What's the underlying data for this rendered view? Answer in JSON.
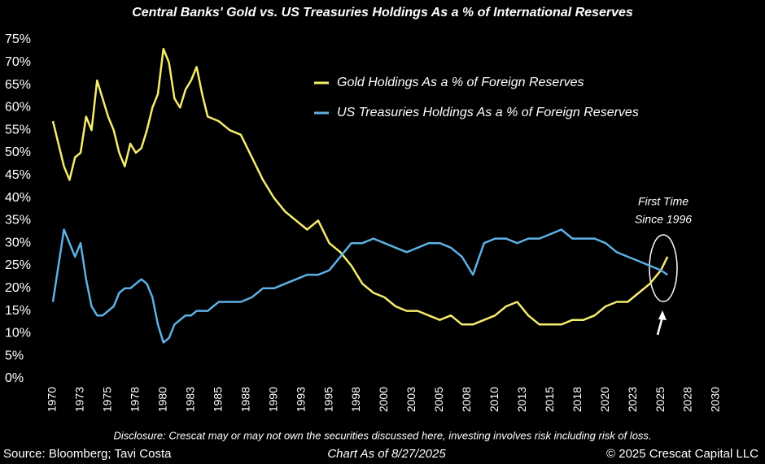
{
  "chart_data": {
    "type": "line",
    "title": "Central Banks' Gold vs. US Treasuries Holdings As a % of International Reserves",
    "x": [
      1970,
      1970.5,
      1971,
      1971.5,
      1972,
      1972.5,
      1973,
      1973.5,
      1974,
      1974.5,
      1975,
      1975.5,
      1976,
      1976.5,
      1977,
      1977.5,
      1978,
      1978.5,
      1979,
      1979.5,
      1980,
      1980.5,
      1981,
      1981.5,
      1982,
      1982.5,
      1983,
      1983.5,
      1984,
      1985,
      1986,
      1987,
      1988,
      1989,
      1990,
      1991,
      1992,
      1993,
      1994,
      1995,
      1996,
      1997,
      1998,
      1999,
      2000,
      2001,
      2002,
      2003,
      2004,
      2005,
      2006,
      2007,
      2008,
      2009,
      2010,
      2011,
      2012,
      2013,
      2014,
      2015,
      2016,
      2017,
      2018,
      2019,
      2020,
      2021,
      2022,
      2023,
      2024,
      2025,
      2025.6
    ],
    "series": [
      {
        "name": "Gold Holdings As a % of Foreign Reserves",
        "color": "#f5ec6e",
        "values": [
          57,
          52,
          47,
          44,
          49,
          50,
          58,
          55,
          66,
          62,
          58,
          55,
          50,
          47,
          52,
          50,
          51,
          55,
          60,
          63,
          73,
          70,
          62,
          60,
          64,
          66,
          69,
          63,
          58,
          57,
          55,
          54,
          49,
          44,
          40,
          37,
          35,
          33,
          35,
          30,
          28,
          25,
          21,
          19,
          18,
          16,
          15,
          15,
          14,
          13,
          14,
          12,
          12,
          13,
          14,
          16,
          17,
          14,
          12,
          12,
          12,
          13,
          13,
          14,
          16,
          17,
          17,
          19,
          21,
          24,
          27
        ]
      },
      {
        "name": "US Treasuries Holdings As a % of Foreign Reserves",
        "color": "#5eb0e5",
        "values": [
          17,
          25,
          33,
          30,
          27,
          30,
          22,
          16,
          14,
          14,
          15,
          16,
          19,
          20,
          20,
          21,
          22,
          21,
          18,
          12,
          8,
          9,
          12,
          13,
          14,
          14,
          15,
          15,
          15,
          17,
          17,
          17,
          18,
          20,
          20,
          21,
          22,
          23,
          23,
          24,
          27,
          30,
          30,
          31,
          30,
          29,
          28,
          29,
          30,
          30,
          29,
          27,
          23,
          30,
          31,
          31,
          30,
          31,
          31,
          32,
          33,
          31,
          31,
          31,
          30,
          28,
          27,
          26,
          25,
          24,
          23
        ]
      }
    ],
    "xlim": [
      1970,
      2030
    ],
    "xticks": [
      1970,
      {
        "value": 1972.5,
        "label": "1973"
      },
      1975,
      {
        "value": 1977.5,
        "label": "1978"
      },
      1980,
      {
        "value": 1982.5,
        "label": "1983"
      },
      1985,
      {
        "value": 1987.5,
        "label": "1988"
      },
      1990,
      {
        "value": 1992.5,
        "label": "1993"
      },
      1995,
      {
        "value": 1997.5,
        "label": "1998"
      },
      2000,
      {
        "value": 2002.5,
        "label": "2003"
      },
      2005,
      {
        "value": 2007.5,
        "label": "2008"
      },
      2010,
      {
        "value": 2012.5,
        "label": "2013"
      },
      2015,
      {
        "value": 2017.5,
        "label": "2018"
      },
      2020,
      {
        "value": 2022.5,
        "label": "2023"
      },
      2025,
      {
        "value": 2027.5,
        "label": "2028"
      },
      2030
    ],
    "ylim": [
      0,
      75
    ],
    "yticks": [
      {
        "value": 0,
        "label": "0%"
      },
      {
        "value": 5,
        "label": "5%"
      },
      {
        "value": 10,
        "label": "10%"
      },
      {
        "value": 15,
        "label": "15%"
      },
      {
        "value": 20,
        "label": "20%"
      },
      {
        "value": 25,
        "label": "25%"
      },
      {
        "value": 30,
        "label": "30%"
      },
      {
        "value": 35,
        "label": "35%"
      },
      {
        "value": 40,
        "label": "40%"
      },
      {
        "value": 45,
        "label": "45%"
      },
      {
        "value": 50,
        "label": "50%"
      },
      {
        "value": 55,
        "label": "55%"
      },
      {
        "value": 60,
        "label": "60%"
      },
      {
        "value": 65,
        "label": "65%"
      },
      {
        "value": 70,
        "label": "70%"
      },
      {
        "value": 75,
        "label": "75%"
      }
    ],
    "annotation": [
      "First Time",
      "Since 1996"
    ],
    "disclosure": "Disclosure: Crescat may or may not own the securities discussed here, investing involves risk including risk of loss.",
    "source": "Source: Bloomberg; Tavi Costa",
    "date_note": "Chart As of 8/27/2025",
    "copyright": "© 2025 Crescat Capital LLC"
  }
}
